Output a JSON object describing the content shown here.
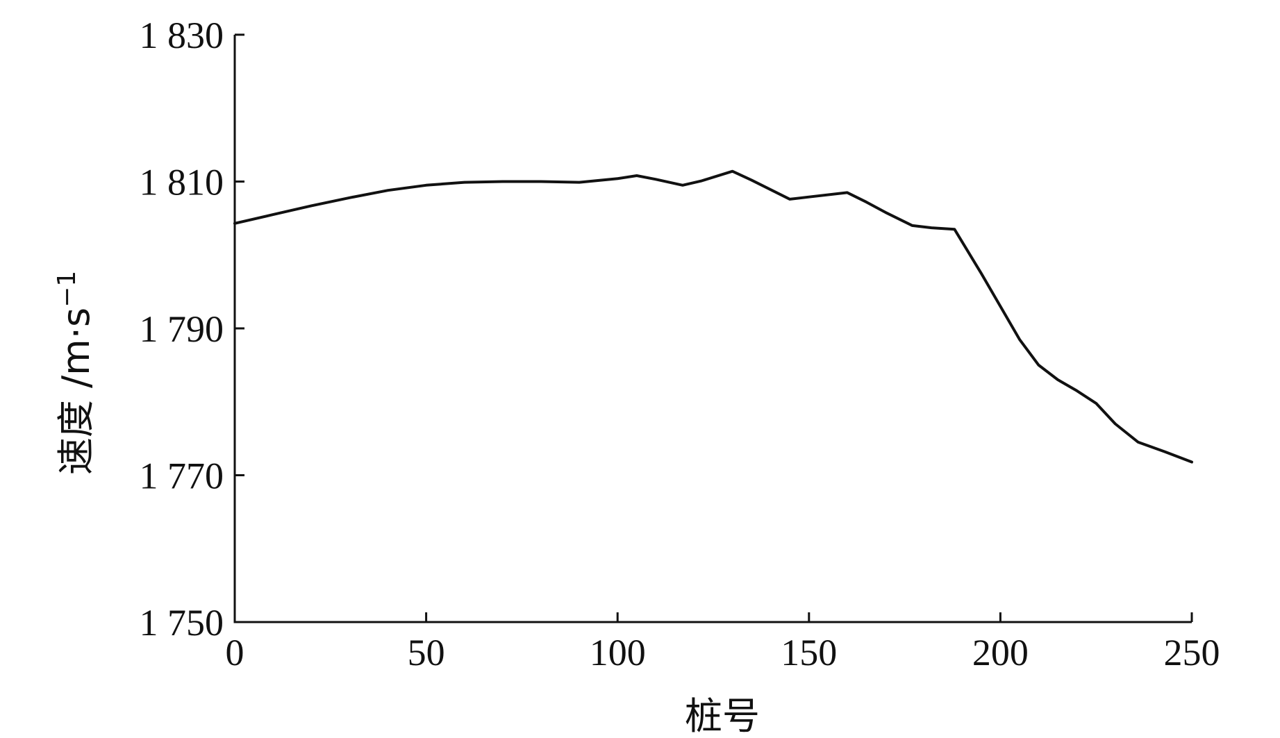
{
  "chart_data": {
    "type": "line",
    "title": "",
    "xlabel": "桩号",
    "ylabel": "速度 /m·s",
    "ylabel_superscript": "−1",
    "xlim": [
      0,
      250
    ],
    "ylim": [
      1750,
      1830
    ],
    "xticks": [
      0,
      50,
      100,
      150,
      200,
      250
    ],
    "xtick_labels": [
      "0",
      "50",
      "100",
      "150",
      "200",
      "250"
    ],
    "yticks": [
      1750,
      1770,
      1790,
      1810,
      1830
    ],
    "ytick_labels": [
      "1 750",
      "1 770",
      "1 790",
      "1 810",
      "1 830"
    ],
    "grid": false,
    "legend": "none",
    "line_color": "#111111",
    "series": [
      {
        "x": [
          0,
          10,
          20,
          30,
          40,
          50,
          60,
          70,
          80,
          90,
          100,
          105,
          110,
          117,
          122,
          130,
          135,
          145,
          150,
          160,
          165,
          170,
          177,
          182,
          188,
          195,
          200,
          205,
          210,
          215,
          220,
          225,
          230,
          236,
          243,
          250
        ],
        "values": [
          1804.3,
          1805.5,
          1806.7,
          1807.8,
          1808.8,
          1809.5,
          1809.9,
          1810.0,
          1810.0,
          1809.9,
          1810.4,
          1810.8,
          1810.3,
          1809.5,
          1810.1,
          1811.4,
          1810.2,
          1807.6,
          1807.9,
          1808.5,
          1807.2,
          1805.8,
          1804.0,
          1803.7,
          1803.5,
          1797.5,
          1793.0,
          1788.5,
          1785.0,
          1783.0,
          1781.5,
          1779.8,
          1777.0,
          1774.5,
          1773.2,
          1771.8
        ]
      }
    ]
  }
}
